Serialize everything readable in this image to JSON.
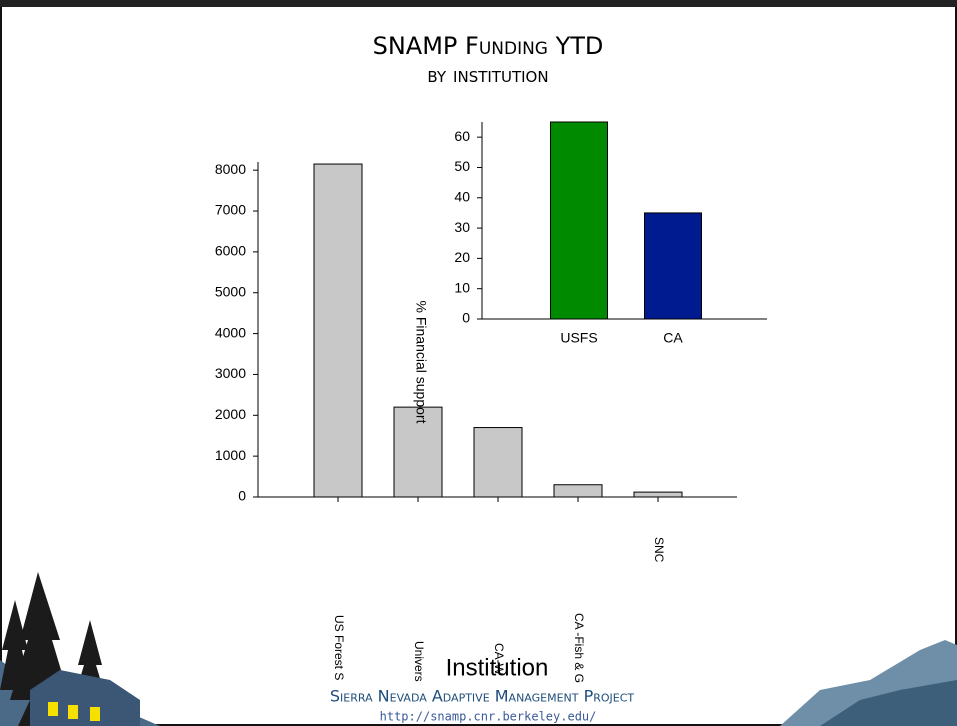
{
  "header": {
    "title": "SNAMP Funding YTD",
    "subtitle": "by institution"
  },
  "chart_data": [
    {
      "type": "bar",
      "x_label": "Institution",
      "categories": [
        "US Forest S",
        "Univers",
        "CA-W",
        "CA -Fish & G",
        "SNC"
      ],
      "values": [
        8150,
        2200,
        1700,
        300,
        120
      ],
      "color": "#c8c8c8",
      "ylim": [
        0,
        8200
      ],
      "yticks": [
        0,
        1000,
        2000,
        3000,
        4000,
        5000,
        6000,
        7000,
        8000
      ]
    },
    {
      "type": "bar",
      "y_label": "% Financial support",
      "categories": [
        "USFS",
        "CA"
      ],
      "values": [
        65,
        35
      ],
      "colors": [
        "#008a00",
        "#001a8f"
      ],
      "ylim": [
        0,
        65
      ],
      "yticks": [
        0,
        10,
        20,
        30,
        40,
        50,
        60
      ]
    }
  ],
  "footer": {
    "project": "Sierra Nevada Adaptive Management Project",
    "url": "http://snamp.cnr.berkeley.edu/"
  }
}
